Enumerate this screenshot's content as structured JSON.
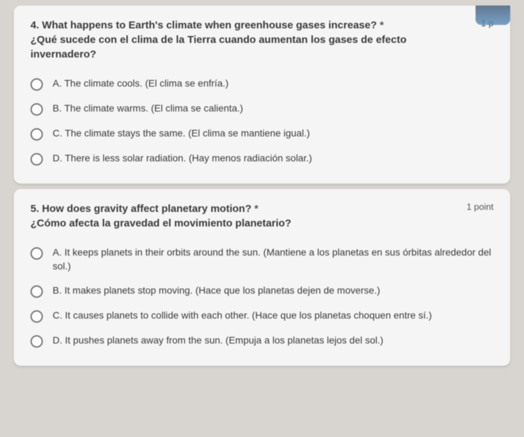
{
  "questions": [
    {
      "number": "4",
      "text_en": "4. What happens to Earth's climate when greenhouse gases increase?",
      "text_es": "¿Qué sucede con el clima de la Tierra cuando aumentan los gases de efecto invernadero?",
      "points": "1 p",
      "required": "*",
      "options": [
        {
          "label": "A. The climate cools. (El clima se enfría.)"
        },
        {
          "label": "B. The climate warms. (El clima se calienta.)"
        },
        {
          "label": "C. The climate stays the same. (El clima se mantiene igual.)"
        },
        {
          "label": "D. There is less solar radiation. (Hay menos radiación solar.)"
        }
      ]
    },
    {
      "number": "5",
      "text_en": "5. How does gravity affect planetary motion?",
      "text_es": "¿Cómo afecta la gravedad el movimiento planetario?",
      "points": "1 point",
      "required": "*",
      "options": [
        {
          "label": "A. It keeps planets in their orbits around the sun. (Mantiene a los planetas en sus órbitas alrededor del sol.)"
        },
        {
          "label": "B. It makes planets stop moving. (Hace que los planetas dejen de moverse.)"
        },
        {
          "label": "C. It causes planets to collide with each other. (Hace que los planetas choquen entre sí.)"
        },
        {
          "label": "D. It pushes planets away from the sun. (Empuja a los planetas lejos del sol.)"
        }
      ]
    }
  ]
}
